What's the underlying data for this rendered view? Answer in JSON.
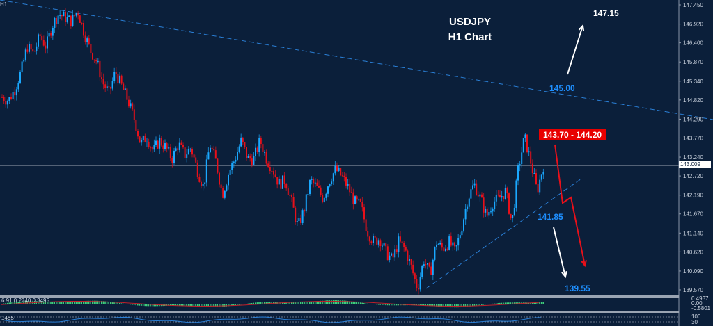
{
  "chart_data": {
    "type": "candlestick",
    "symbol": "USDJPY",
    "timeframe": "H1",
    "title": "USDJPY",
    "subtitle": "H1 Chart",
    "ylim": [
      139.3,
      147.6
    ],
    "y_ticks": [
      "147.450",
      "146.920",
      "146.400",
      "145.870",
      "145.340",
      "144.820",
      "144.290",
      "143.770",
      "143.240",
      "142.720",
      "142.190",
      "141.670",
      "141.140",
      "140.620",
      "140.090",
      "139.570"
    ],
    "current_price": "143.009",
    "levels": {
      "target_up": "147.15",
      "resistance_line": "145.00",
      "resistance_zone": "143.70 - 144.20",
      "support": "141.85",
      "target_down": "139.55"
    },
    "trendlines": [
      {
        "name": "descending-resistance",
        "from": [
          0,
          147.6
        ],
        "to": [
          1024,
          144.2
        ]
      },
      {
        "name": "ascending-support",
        "from": [
          612,
          139.55
        ],
        "to": [
          835,
          142.72
        ]
      }
    ],
    "price_path": [
      144.9,
      144.8,
      145.1,
      145.6,
      146.3,
      146.1,
      146.6,
      146.3,
      146.9,
      147.2,
      147.1,
      147.0,
      147.3,
      146.7,
      146.2,
      145.9,
      145.3,
      145.0,
      145.6,
      145.2,
      144.8,
      144.3,
      143.6,
      143.8,
      143.4,
      143.7,
      143.5,
      143.2,
      143.6,
      143.3,
      143.5,
      142.9,
      142.4,
      143.6,
      143.1,
      142.2,
      142.8,
      143.2,
      143.7,
      143.2,
      143.2,
      143.7,
      143.2,
      142.9,
      142.5,
      142.6,
      142.0,
      141.3,
      141.8,
      142.6,
      142.4,
      142.1,
      142.6,
      142.9,
      142.7,
      142.4,
      142.0,
      141.9,
      141.2,
      140.9,
      141.0,
      140.6,
      140.4,
      140.9,
      140.7,
      140.2,
      139.6,
      140.4,
      140.0,
      140.9,
      140.7,
      140.9,
      140.6,
      141.3,
      142.1,
      142.5,
      142.1,
      141.6,
      142.0,
      142.1,
      142.3,
      141.4,
      142.9,
      143.8,
      143.1,
      142.3,
      143.0
    ],
    "indicators": {
      "macd_label": "6.91 0.2740 0.3495",
      "macd_scale": [
        "0.4937",
        "0.00",
        "-0.5801"
      ],
      "rsi_label": "1455",
      "rsi_scale": [
        "100",
        "30"
      ]
    },
    "colors": {
      "background": "#0b1f3a",
      "bull": "#1aa8ff",
      "bear": "#e8101a",
      "trendline": "#2a7fd6",
      "macd_hist": "#3ecf7c",
      "macd_signal": "#c0202a",
      "rsi": "#2a7fd6",
      "arrow_red": "#e8101a",
      "arrow_white": "#ffffff"
    }
  }
}
